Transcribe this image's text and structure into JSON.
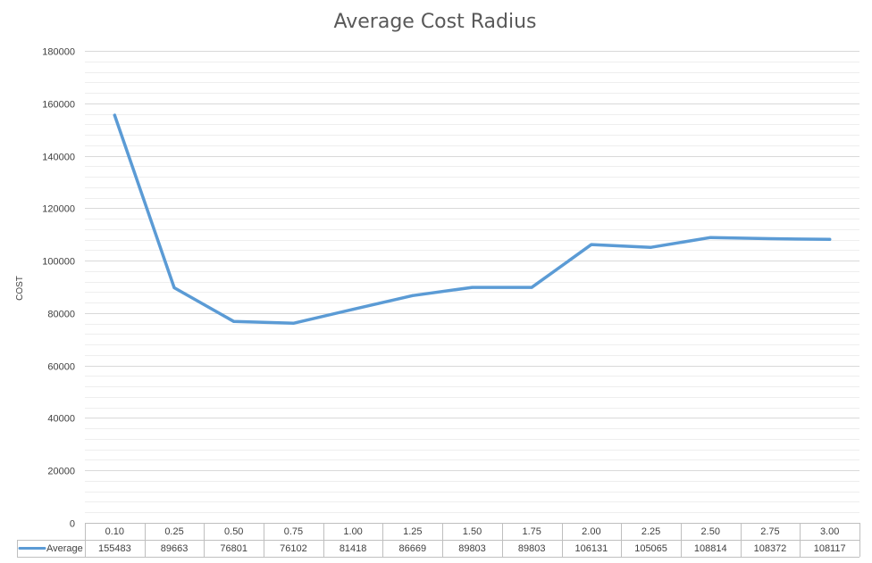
{
  "chart_data": {
    "type": "line",
    "title": "Average Cost Radius",
    "ylabel": "COST",
    "xlabel": "",
    "ylim": [
      0,
      180000
    ],
    "y_ticks": [
      0,
      20000,
      40000,
      60000,
      80000,
      100000,
      120000,
      140000,
      160000,
      180000
    ],
    "y_tick_labels": [
      "0",
      "20000",
      "40000",
      "60000",
      "80000",
      "100000",
      "120000",
      "140000",
      "160000",
      "180000"
    ],
    "categories": [
      "0.10",
      "0.25",
      "0.50",
      "0.75",
      "1.00",
      "1.25",
      "1.50",
      "1.75",
      "2.00",
      "2.25",
      "2.50",
      "2.75",
      "3.00"
    ],
    "series": [
      {
        "name": "Average",
        "color": "#5b9bd5",
        "values": [
          155483,
          89663,
          76801,
          76102,
          81418,
          86669,
          89803,
          89803,
          106131,
          105065,
          108814,
          108372,
          108117
        ],
        "value_labels": [
          "155483",
          "89663",
          "76801",
          "76102",
          "81418",
          "86669",
          "89803",
          "89803",
          "106131",
          "105065",
          "108814",
          "108372",
          "108117"
        ]
      }
    ],
    "grid": true,
    "minor_grid": true,
    "data_table": true,
    "colors": {
      "major_grid": "#d9d9d9",
      "minor_grid": "#eeeeee",
      "table_border": "#bfbfbf"
    }
  }
}
